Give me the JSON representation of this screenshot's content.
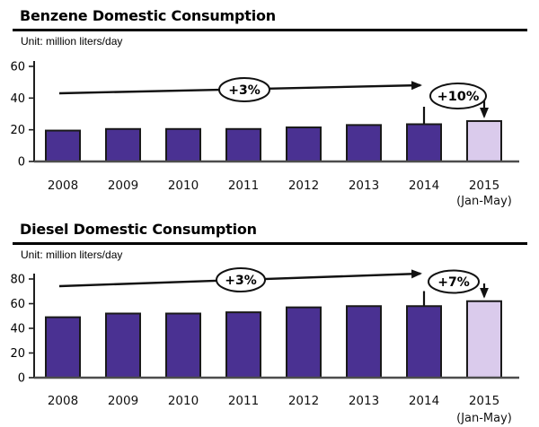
{
  "chart_data": [
    {
      "type": "bar",
      "title": "Benzene Domestic Consumption",
      "unit_label": "Unit: million liters/day",
      "categories": [
        "2008",
        "2009",
        "2010",
        "2011",
        "2012",
        "2013",
        "2014",
        "2015"
      ],
      "last_category_note": "(Jan-May)",
      "values": [
        19.5,
        20.5,
        20.5,
        20.5,
        21.5,
        23,
        23.5,
        25.5
      ],
      "ylim": [
        0,
        60
      ],
      "yticks": [
        0,
        20,
        40,
        60
      ],
      "grid": false,
      "legend": false,
      "bar_color": "#4A3192",
      "highlight_bar_color": "#DACBEC",
      "highlight_index": 7,
      "trend_label": "+3%",
      "trend_span": [
        "2008",
        "2014"
      ],
      "change_label": "+10%",
      "change_span": [
        "2014",
        "2015"
      ]
    },
    {
      "type": "bar",
      "title": "Diesel Domestic Consumption",
      "unit_label": "Unit: million liters/day",
      "categories": [
        "2008",
        "2009",
        "2010",
        "2011",
        "2012",
        "2013",
        "2014",
        "2015"
      ],
      "last_category_note": "(Jan-May)",
      "values": [
        49,
        52,
        52,
        53,
        57,
        58,
        58,
        62
      ],
      "ylim": [
        0,
        80
      ],
      "yticks": [
        0,
        20,
        40,
        60,
        80
      ],
      "grid": false,
      "legend": false,
      "bar_color": "#4A3192",
      "highlight_bar_color": "#DACBEC",
      "highlight_index": 7,
      "trend_label": "+3%",
      "trend_span": [
        "2008",
        "2014"
      ],
      "change_label": "+7%",
      "change_span": [
        "2014",
        "2015"
      ]
    }
  ],
  "line_color": "#111111",
  "axis_color": "#1f1f1f",
  "baseline_color": "#4d4d4d"
}
